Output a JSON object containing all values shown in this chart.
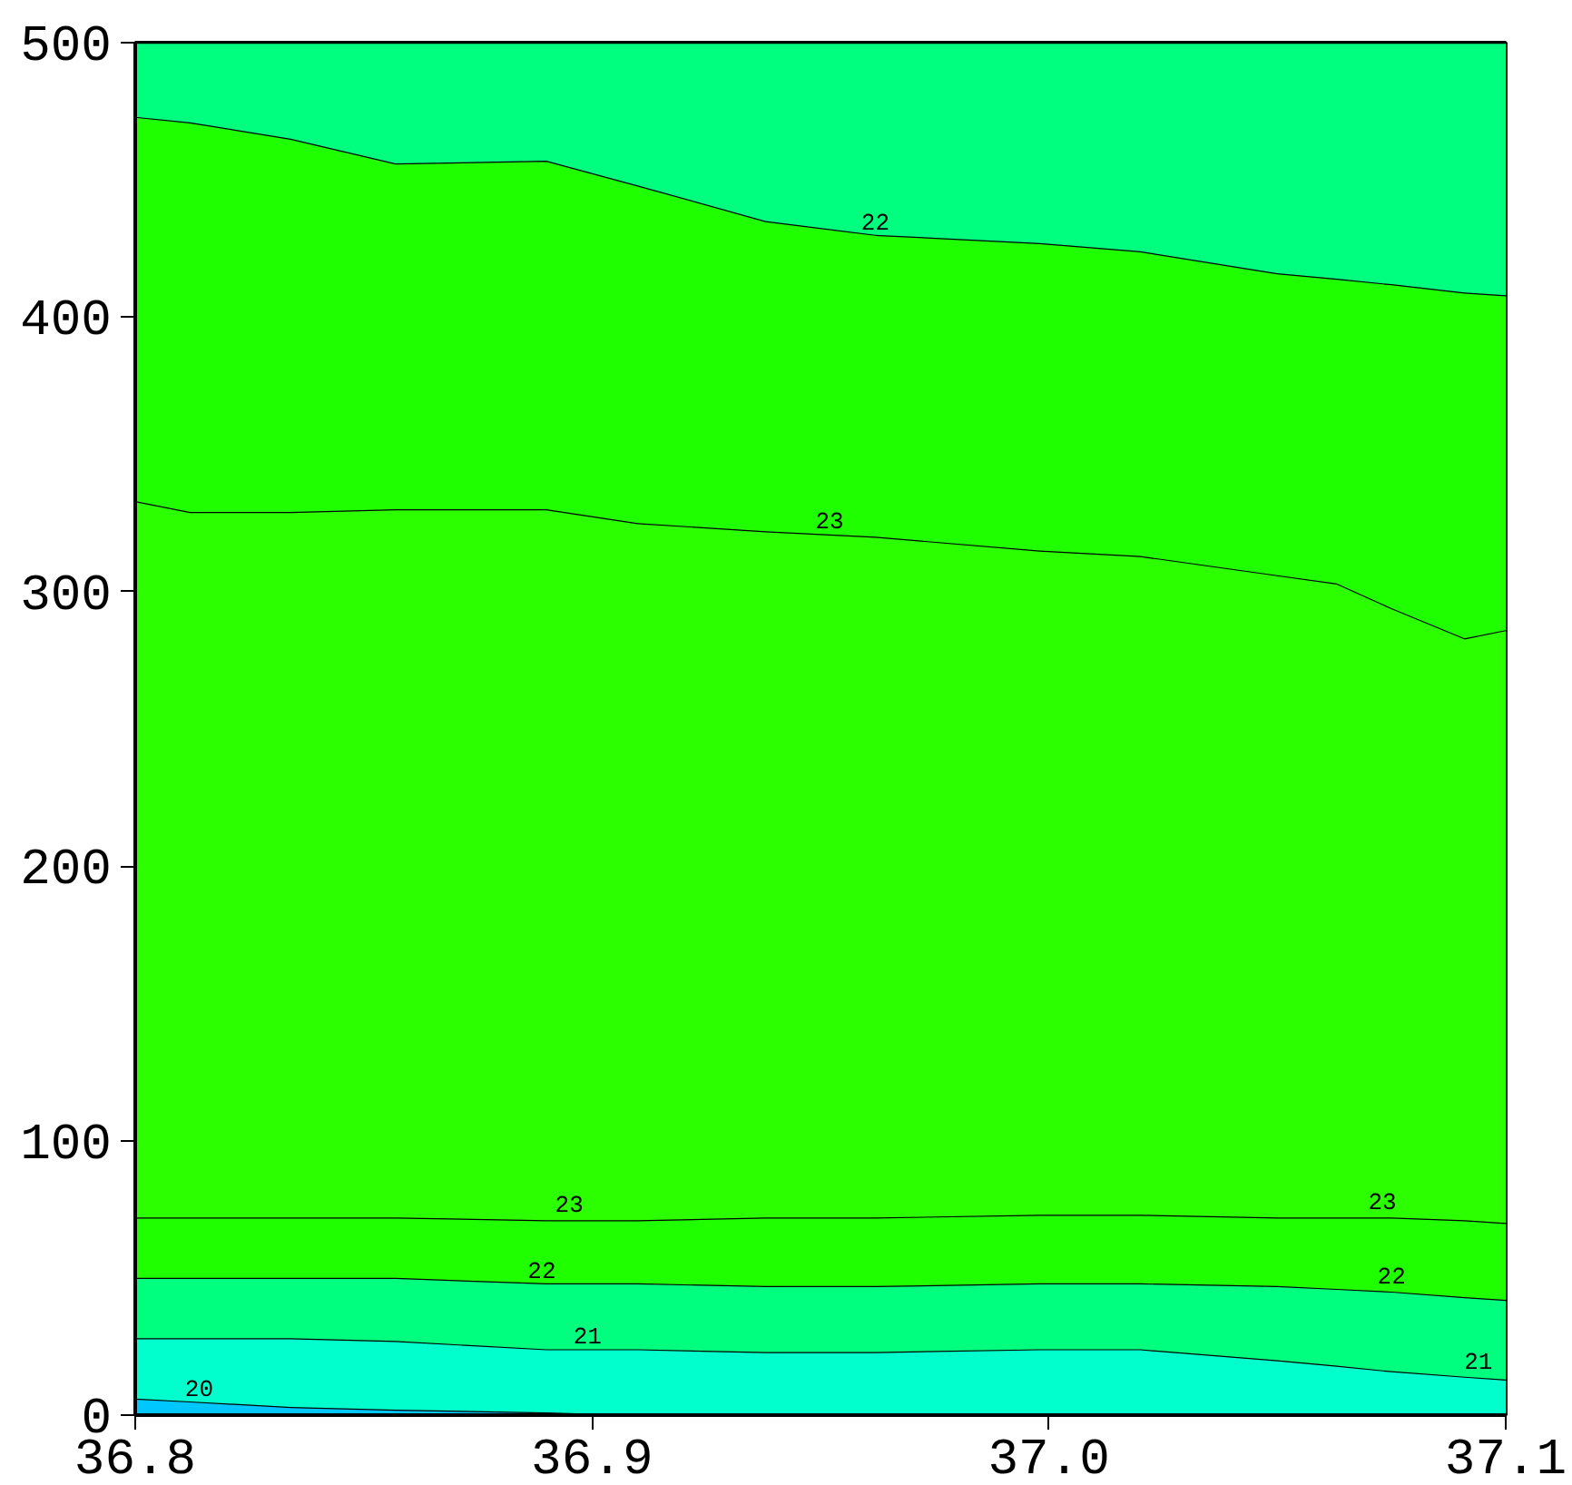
{
  "chart_data": {
    "type": "area",
    "stacked": true,
    "xlim": [
      36.8,
      37.1
    ],
    "ylim": [
      0,
      500
    ],
    "xticks": [
      36.8,
      36.9,
      {
        "value": 37.0,
        "label": "37.0"
      },
      37.1
    ],
    "yticks": [
      0,
      100,
      200,
      300,
      400,
      500
    ],
    "x": [
      36.8,
      36.812,
      36.834,
      36.857,
      36.89,
      36.91,
      36.938,
      36.962,
      36.998,
      37.02,
      37.05,
      37.063,
      37.075,
      37.091,
      37.1
    ],
    "series": [
      {
        "color": "#00c8ff",
        "values": [
          6,
          5,
          3,
          2,
          1,
          0,
          0,
          0,
          0,
          0,
          0,
          0,
          0,
          0,
          0
        ]
      },
      {
        "color": "#00ffcc",
        "values": [
          22,
          23,
          25,
          25,
          23,
          24,
          23,
          23,
          24,
          24,
          20,
          18,
          16,
          14,
          13
        ]
      },
      {
        "color": "#00ff7f",
        "values": [
          22,
          22,
          22,
          23,
          24,
          24,
          24,
          24,
          24,
          24,
          27,
          28,
          29,
          29,
          29
        ]
      },
      {
        "color": "#1fff00",
        "values": [
          22,
          22,
          22,
          22,
          23,
          23,
          25,
          25,
          25,
          25,
          25,
          26,
          27,
          28,
          28
        ]
      },
      {
        "color": "#2bff00",
        "values": [
          261,
          257,
          257,
          258,
          259,
          254,
          250,
          248,
          242,
          240,
          234,
          231,
          222,
          212,
          216
        ]
      },
      {
        "color": "#1fff00",
        "values": [
          140,
          142,
          136,
          126,
          127,
          123,
          113,
          110,
          112,
          111,
          110,
          111,
          118,
          126,
          122
        ]
      },
      {
        "color": "#00ff7f",
        "values": [
          27,
          29,
          35,
          44,
          43,
          52,
          65,
          70,
          73,
          76,
          84,
          86,
          88,
          91,
          92
        ]
      }
    ],
    "annotations": [
      {
        "text": "22",
        "x": 36.962,
        "y": 430
      },
      {
        "text": "23",
        "x": 36.952,
        "y": 321
      },
      {
        "text": "23",
        "x": 36.895,
        "y": 72
      },
      {
        "text": "23",
        "x": 37.073,
        "y": 73
      },
      {
        "text": "22",
        "x": 36.889,
        "y": 48
      },
      {
        "text": "22",
        "x": 37.075,
        "y": 46
      },
      {
        "text": "21",
        "x": 36.899,
        "y": 24
      },
      {
        "text": "21",
        "x": 37.094,
        "y": 15
      },
      {
        "text": "20",
        "x": 36.814,
        "y": 5
      }
    ]
  }
}
